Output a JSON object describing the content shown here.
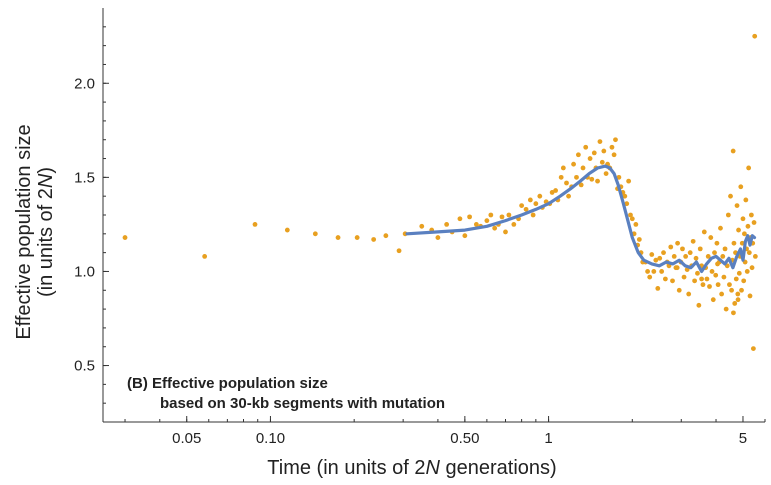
{
  "chart_data": {
    "type": "scatter",
    "x_scale": "log",
    "xlim": [
      0.025,
      6.0
    ],
    "ylim": [
      0.2,
      2.4
    ],
    "x_ticks": [
      {
        "value": 0.05,
        "label": "0.05"
      },
      {
        "value": 0.1,
        "label": "0.10"
      },
      {
        "value": 0.5,
        "label": "0.50"
      },
      {
        "value": 1,
        "label": "1"
      },
      {
        "value": 5,
        "label": "5"
      }
    ],
    "y_ticks": [
      {
        "value": 0.5,
        "label": "0.5"
      },
      {
        "value": 1.0,
        "label": "1.0"
      },
      {
        "value": 1.5,
        "label": "1.5"
      },
      {
        "value": 2.0,
        "label": "2.0"
      }
    ],
    "xlabel_parts": [
      "Time (in units of 2",
      "N",
      " generations)"
    ],
    "ylabel_line1": "Effective population size",
    "ylabel_line2_parts": [
      "(in units of 2",
      "N",
      ")"
    ],
    "annotation_line1": "(B) Effective population size",
    "annotation_line2": "based on 30-kb segments with mutation",
    "grid": false,
    "colors": {
      "points": "#E8A020",
      "curve": "#5A80C0",
      "axis": "#333333",
      "text": "#222222"
    },
    "series": [
      {
        "kind": "points",
        "points": [
          [
            0.03,
            1.18
          ],
          [
            0.058,
            1.08
          ],
          [
            0.088,
            1.25
          ],
          [
            0.115,
            1.22
          ],
          [
            0.145,
            1.2
          ],
          [
            0.175,
            1.18
          ],
          [
            0.205,
            1.18
          ],
          [
            0.235,
            1.17
          ],
          [
            0.26,
            1.19
          ],
          [
            0.29,
            1.11
          ],
          [
            0.305,
            1.2
          ],
          [
            0.35,
            1.24
          ],
          [
            0.38,
            1.22
          ],
          [
            0.4,
            1.18
          ],
          [
            0.43,
            1.25
          ],
          [
            0.45,
            1.21
          ],
          [
            0.48,
            1.28
          ],
          [
            0.5,
            1.19
          ],
          [
            0.52,
            1.29
          ],
          [
            0.55,
            1.25
          ],
          [
            0.57,
            1.24
          ],
          [
            0.6,
            1.27
          ],
          [
            0.62,
            1.3
          ],
          [
            0.64,
            1.23
          ],
          [
            0.66,
            1.25
          ],
          [
            0.68,
            1.29
          ],
          [
            0.7,
            1.21
          ],
          [
            0.72,
            1.3
          ],
          [
            0.75,
            1.25
          ],
          [
            0.78,
            1.28
          ],
          [
            0.8,
            1.35
          ],
          [
            0.83,
            1.33
          ],
          [
            0.86,
            1.38
          ],
          [
            0.88,
            1.3
          ],
          [
            0.9,
            1.36
          ],
          [
            0.93,
            1.4
          ],
          [
            0.95,
            1.34
          ],
          [
            0.98,
            1.37
          ],
          [
            1.01,
            1.36
          ],
          [
            1.03,
            1.42
          ],
          [
            1.06,
            1.43
          ],
          [
            1.08,
            1.38
          ],
          [
            1.11,
            1.5
          ],
          [
            1.13,
            1.55
          ],
          [
            1.16,
            1.47
          ],
          [
            1.18,
            1.4
          ],
          [
            1.21,
            1.45
          ],
          [
            1.23,
            1.57
          ],
          [
            1.26,
            1.5
          ],
          [
            1.28,
            1.62
          ],
          [
            1.31,
            1.46
          ],
          [
            1.33,
            1.55
          ],
          [
            1.36,
            1.66
          ],
          [
            1.38,
            1.5
          ],
          [
            1.41,
            1.6
          ],
          [
            1.43,
            1.49
          ],
          [
            1.46,
            1.63
          ],
          [
            1.48,
            1.55
          ],
          [
            1.5,
            1.48
          ],
          [
            1.53,
            1.69
          ],
          [
            1.56,
            1.58
          ],
          [
            1.58,
            1.64
          ],
          [
            1.61,
            1.52
          ],
          [
            1.63,
            1.57
          ],
          [
            1.66,
            1.55
          ],
          [
            1.69,
            1.66
          ],
          [
            1.72,
            1.62
          ],
          [
            1.74,
            1.7
          ],
          [
            1.77,
            1.44
          ],
          [
            1.79,
            1.5
          ],
          [
            1.82,
            1.45
          ],
          [
            1.85,
            1.42
          ],
          [
            1.88,
            1.4
          ],
          [
            1.91,
            1.36
          ],
          [
            1.94,
            1.48
          ],
          [
            1.97,
            1.3
          ],
          [
            2.0,
            1.28
          ],
          [
            2.03,
            1.2
          ],
          [
            2.06,
            1.25
          ],
          [
            2.09,
            1.14
          ],
          [
            2.12,
            1.17
          ],
          [
            2.15,
            1.1
          ],
          [
            2.18,
            1.05
          ],
          [
            2.23,
            1.05
          ],
          [
            2.27,
            1.0
          ],
          [
            2.31,
            0.97
          ],
          [
            2.35,
            1.09
          ],
          [
            2.39,
            1.0
          ],
          [
            2.43,
            1.06
          ],
          [
            2.47,
            0.91
          ],
          [
            2.51,
            1.07
          ],
          [
            2.55,
            1.0
          ],
          [
            2.59,
            1.1
          ],
          [
            2.63,
            0.96
          ],
          [
            2.67,
            1.05
          ],
          [
            2.71,
            1.03
          ],
          [
            2.75,
            1.13
          ],
          [
            2.79,
            0.95
          ],
          [
            2.83,
            1.08
          ],
          [
            2.87,
            1.02
          ],
          [
            2.91,
            1.15
          ],
          [
            2.95,
            0.9
          ],
          [
            2.99,
            1.05
          ],
          [
            3.03,
            1.12
          ],
          [
            3.07,
            0.97
          ],
          [
            3.11,
            1.08
          ],
          [
            3.15,
            1.01
          ],
          [
            3.19,
            0.88
          ],
          [
            3.23,
            1.1
          ],
          [
            3.27,
            1.03
          ],
          [
            3.31,
            1.16
          ],
          [
            3.35,
            0.95
          ],
          [
            3.39,
            1.07
          ],
          [
            3.43,
            0.99
          ],
          [
            3.47,
            0.82
          ],
          [
            3.51,
            1.12
          ],
          [
            3.55,
            1.03
          ],
          [
            3.59,
            0.93
          ],
          [
            3.63,
            1.21
          ],
          [
            3.67,
            1.02
          ],
          [
            3.71,
            0.96
          ],
          [
            3.75,
            1.08
          ],
          [
            3.79,
            0.92
          ],
          [
            3.83,
            1.18
          ],
          [
            3.87,
            1.0
          ],
          [
            3.91,
            0.85
          ],
          [
            3.95,
            1.1
          ],
          [
            3.99,
            0.98
          ],
          [
            4.03,
            1.15
          ],
          [
            4.07,
            0.93
          ],
          [
            4.11,
            1.05
          ],
          [
            4.15,
            1.23
          ],
          [
            4.19,
            0.88
          ],
          [
            4.23,
            1.08
          ],
          [
            4.27,
            0.97
          ],
          [
            4.31,
            1.12
          ],
          [
            4.35,
            0.8
          ],
          [
            4.39,
            1.03
          ],
          [
            4.43,
            1.3
          ],
          [
            4.47,
            0.93
          ],
          [
            4.51,
            1.4
          ],
          [
            4.55,
            0.9
          ],
          [
            4.58,
            1.06
          ],
          [
            4.61,
            1.64
          ],
          [
            4.64,
            1.15
          ],
          [
            4.67,
            0.83
          ],
          [
            4.7,
            1.1
          ],
          [
            4.73,
            0.96
          ],
          [
            4.76,
            1.35
          ],
          [
            4.79,
            0.88
          ],
          [
            4.82,
            1.22
          ],
          [
            4.85,
            0.99
          ],
          [
            4.88,
            1.08
          ],
          [
            4.91,
            1.45
          ],
          [
            4.94,
            0.9
          ],
          [
            4.97,
            1.15
          ],
          [
            5.0,
            1.28
          ],
          [
            5.03,
            0.95
          ],
          [
            5.06,
            1.2
          ],
          [
            5.09,
            1.05
          ],
          [
            5.12,
            1.38
          ],
          [
            5.15,
            1.12
          ],
          [
            5.18,
            1.0
          ],
          [
            5.21,
            1.24
          ],
          [
            5.24,
            1.55
          ],
          [
            5.27,
            1.1
          ],
          [
            5.3,
            0.87
          ],
          [
            5.33,
            1.18
          ],
          [
            5.36,
            1.3
          ],
          [
            5.39,
            1.02
          ],
          [
            5.42,
            1.15
          ],
          [
            5.45,
            0.59
          ],
          [
            5.48,
            1.26
          ],
          [
            5.51,
            2.25
          ],
          [
            5.54,
            1.08
          ],
          [
            4.62,
            0.78
          ],
          [
            3.55,
            0.96
          ],
          [
            2.9,
            1.02
          ],
          [
            4.05,
            1.04
          ],
          [
            4.8,
            0.85
          ]
        ]
      },
      {
        "kind": "curve",
        "points": [
          [
            0.31,
            1.2
          ],
          [
            0.4,
            1.21
          ],
          [
            0.5,
            1.22
          ],
          [
            0.6,
            1.24
          ],
          [
            0.7,
            1.27
          ],
          [
            0.8,
            1.3
          ],
          [
            0.9,
            1.33
          ],
          [
            1.0,
            1.36
          ],
          [
            1.1,
            1.4
          ],
          [
            1.2,
            1.44
          ],
          [
            1.3,
            1.48
          ],
          [
            1.4,
            1.52
          ],
          [
            1.5,
            1.55
          ],
          [
            1.6,
            1.56
          ],
          [
            1.66,
            1.55
          ],
          [
            1.72,
            1.52
          ],
          [
            1.78,
            1.46
          ],
          [
            1.85,
            1.37
          ],
          [
            1.92,
            1.28
          ],
          [
            2.0,
            1.18
          ],
          [
            2.1,
            1.1
          ],
          [
            2.2,
            1.06
          ],
          [
            2.35,
            1.04
          ],
          [
            2.5,
            1.03
          ],
          [
            2.65,
            1.05
          ],
          [
            2.8,
            1.04
          ],
          [
            2.95,
            1.06
          ],
          [
            3.1,
            1.03
          ],
          [
            3.25,
            1.02
          ],
          [
            3.4,
            1.05
          ],
          [
            3.55,
            1.0
          ],
          [
            3.7,
            1.04
          ],
          [
            3.85,
            1.07
          ],
          [
            4.0,
            1.08
          ],
          [
            4.15,
            1.06
          ],
          [
            4.3,
            1.04
          ],
          [
            4.45,
            1.07
          ],
          [
            4.6,
            1.02
          ],
          [
            4.75,
            1.08
          ],
          [
            4.9,
            1.12
          ],
          [
            5.0,
            1.06
          ],
          [
            5.1,
            1.16
          ],
          [
            5.2,
            1.19
          ],
          [
            5.3,
            1.14
          ],
          [
            5.4,
            1.19
          ],
          [
            5.5,
            1.18
          ]
        ]
      }
    ]
  }
}
